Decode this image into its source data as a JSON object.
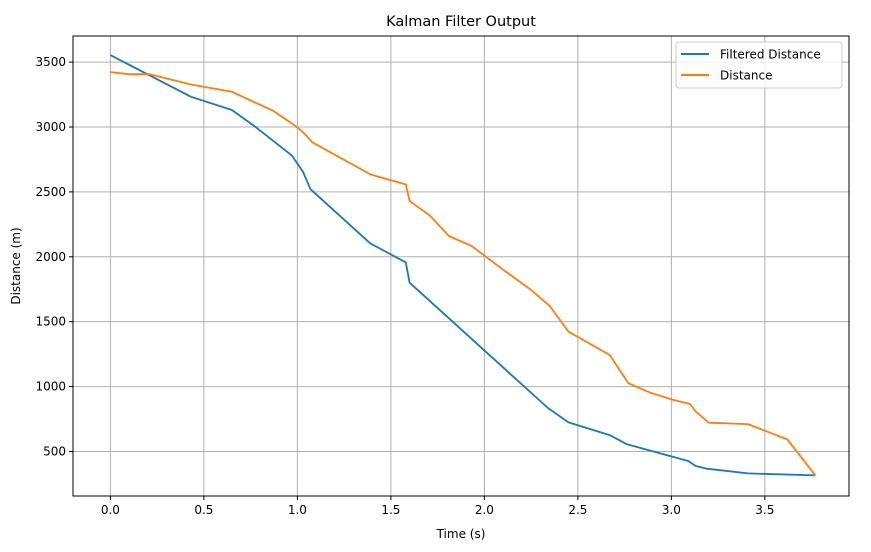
{
  "chart_data": {
    "type": "line",
    "title": "Kalman Filter Output",
    "xlabel": "Time (s)",
    "ylabel": "Distance (m)",
    "xlim": [
      -0.2,
      3.95
    ],
    "ylim": [
      157,
      3701
    ],
    "xticks": [
      0.0,
      0.5,
      1.0,
      1.5,
      2.0,
      2.5,
      3.0,
      3.5
    ],
    "xtick_labels": [
      "0.0",
      "0.5",
      "1.0",
      "1.5",
      "2.0",
      "2.5",
      "3.0",
      "3.5"
    ],
    "yticks": [
      500,
      1000,
      1500,
      2000,
      2500,
      3000,
      3500
    ],
    "ytick_labels": [
      "500",
      "1000",
      "1500",
      "2000",
      "2500",
      "3000",
      "3500"
    ],
    "grid": true,
    "legend_position": "top-right",
    "series": [
      {
        "name": "Filtered Distance",
        "color": "#1f77b4",
        "x": [
          0,
          0.43,
          0.65,
          0.77,
          0.97,
          1.03,
          1.07,
          1.39,
          1.58,
          1.6,
          2.34,
          2.45,
          2.67,
          2.76,
          3.09,
          3.13,
          3.19,
          3.41,
          3.77
        ],
        "y": [
          3554,
          3233,
          3131,
          3007,
          2781,
          2654,
          2521,
          2103,
          1957,
          1800,
          835,
          724,
          626,
          557,
          427,
          388,
          367,
          331,
          316
        ]
      },
      {
        "name": "Distance",
        "color": "#ff7f0e",
        "x": [
          0,
          0.1,
          0.21,
          0.43,
          0.65,
          0.87,
          1.0,
          1.04,
          1.08,
          1.39,
          1.58,
          1.6,
          1.71,
          1.81,
          1.93,
          2.09,
          2.25,
          2.35,
          2.45,
          2.67,
          2.77,
          2.89,
          3.0,
          3.1,
          3.13,
          3.2,
          3.41,
          3.62,
          3.77
        ],
        "y": [
          3423,
          3407,
          3407,
          3327,
          3271,
          3125,
          2997,
          2946,
          2882,
          2635,
          2558,
          2430,
          2316,
          2160,
          2085,
          1911,
          1744,
          1620,
          1423,
          1243,
          1025,
          952,
          901,
          866,
          807,
          722,
          711,
          593,
          316
        ]
      }
    ]
  }
}
